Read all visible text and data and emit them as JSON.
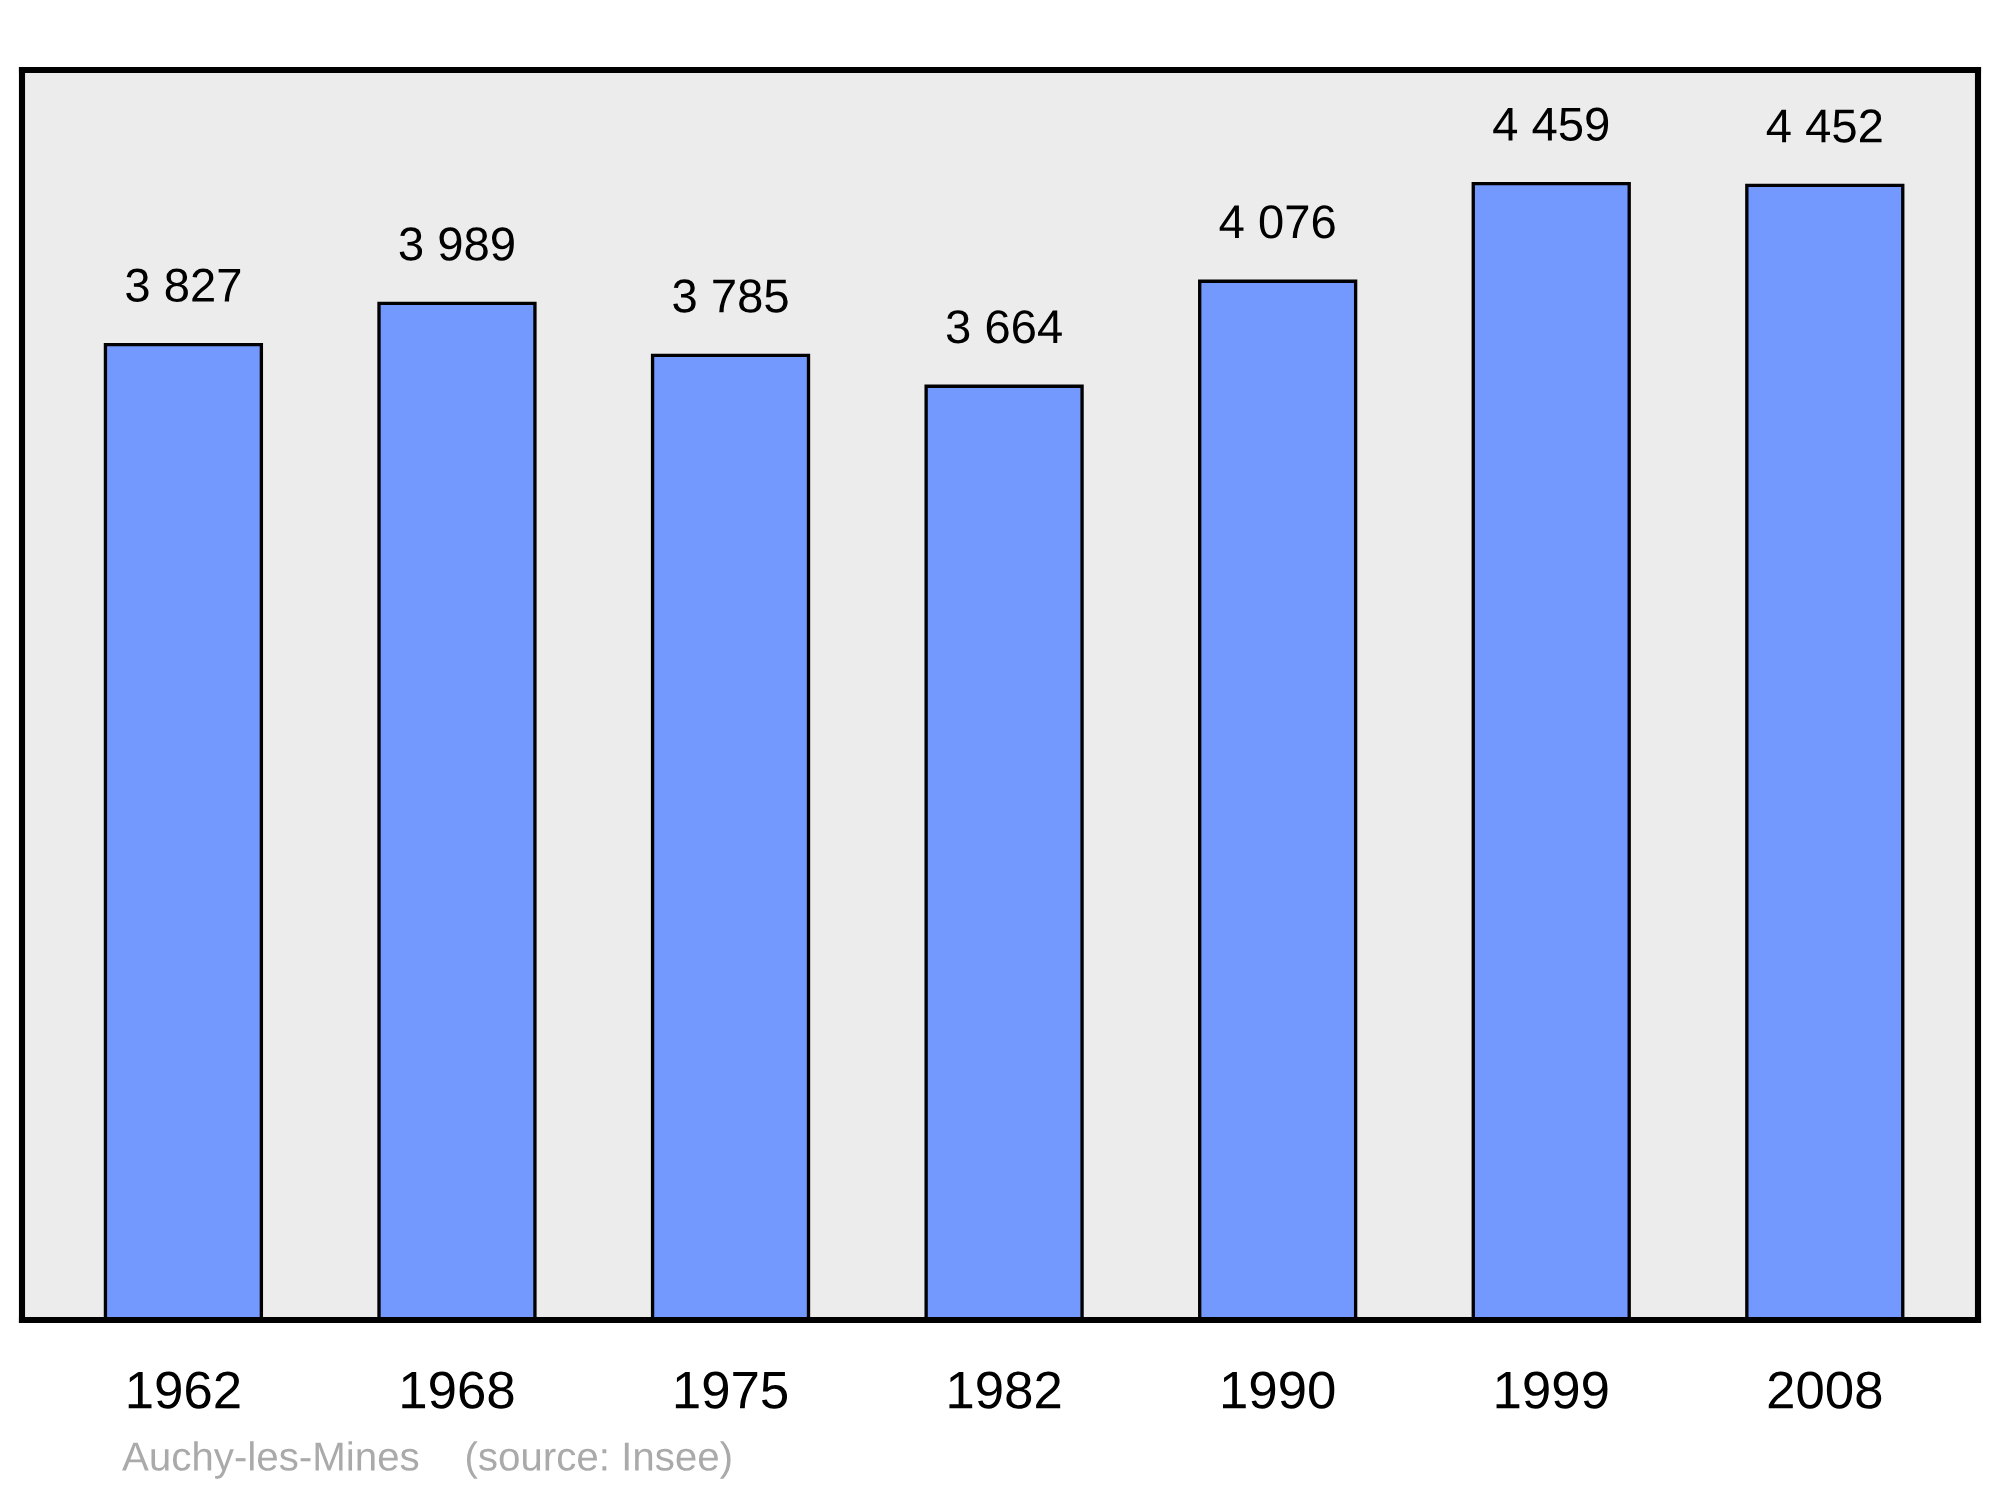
{
  "chart_data": {
    "type": "bar",
    "categories": [
      "1962",
      "1968",
      "1975",
      "1982",
      "1990",
      "1999",
      "2008"
    ],
    "values": [
      3827,
      3989,
      3785,
      3664,
      4076,
      4459,
      4452
    ],
    "value_labels": [
      "3 827",
      "3 989",
      "3 785",
      "3 664",
      "4 076",
      "4 459",
      "4 452"
    ],
    "color": "#7399ff",
    "grid": false,
    "legend": false,
    "tick_labels": "x",
    "annotations": [
      "Auchy-les-Mines    (source: Insee)"
    ]
  }
}
